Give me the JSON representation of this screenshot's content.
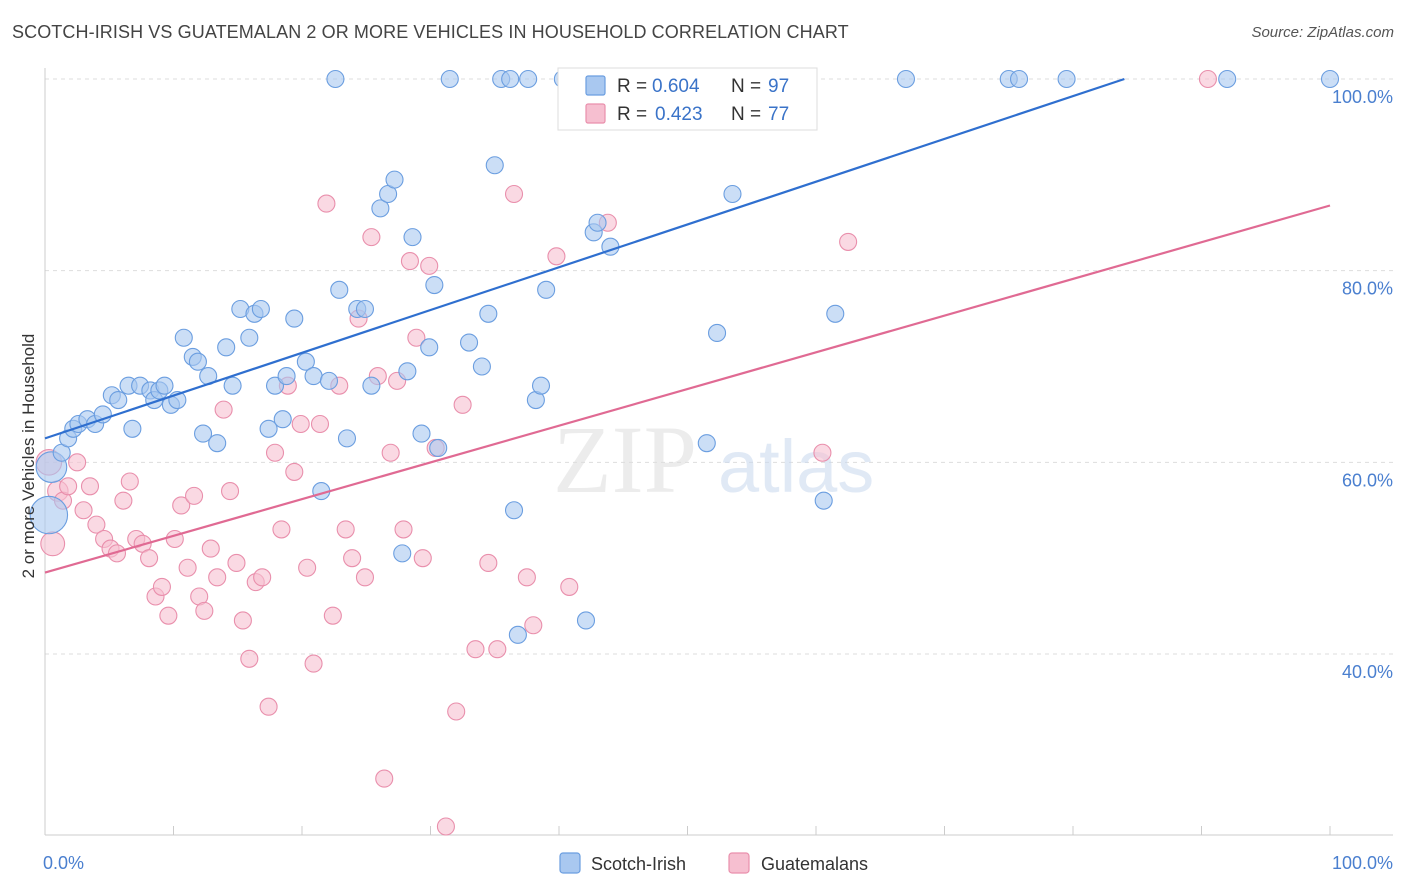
{
  "title": "SCOTCH-IRISH VS GUATEMALAN 2 OR MORE VEHICLES IN HOUSEHOLD CORRELATION CHART",
  "source": "Source: ZipAtlas.com",
  "watermark": {
    "zip": "ZIP",
    "atlas": "atlas"
  },
  "colors": {
    "blue_fill": "#a9c8f0",
    "blue_stroke": "#6b9ee0",
    "blue_line": "#2f6fcf",
    "pink_fill": "#f6bfd0",
    "pink_stroke": "#e98fac",
    "pink_line": "#e06a93",
    "tick_text": "#4a7fcf",
    "grid": "#dddddd"
  },
  "legend": {
    "rows": [
      {
        "r_label": "R =",
        "r_value": "0.604",
        "n_label": "N =",
        "n_value": "97",
        "series": "blue"
      },
      {
        "r_label": "R =",
        "r_value": "0.423",
        "n_label": "N =",
        "n_value": "77",
        "series": "pink"
      }
    ]
  },
  "bottom_legend": [
    {
      "label": "Scotch-Irish",
      "series": "blue"
    },
    {
      "label": "Guatemalans",
      "series": "pink"
    }
  ],
  "chart_data": {
    "type": "scatter",
    "xlabel": "",
    "ylabel": "2 or more Vehicles in Household",
    "xlim": [
      0,
      100
    ],
    "ylim": [
      20,
      101
    ],
    "x_tick_labels": [
      {
        "value": 0,
        "label": "0.0%"
      },
      {
        "value": 100,
        "label": "100.0%"
      }
    ],
    "y_tick_labels": [
      {
        "value": 40,
        "label": "40.0%"
      },
      {
        "value": 60,
        "label": "60.0%"
      },
      {
        "value": 80,
        "label": "80.0%"
      },
      {
        "value": 100,
        "label": "100.0%"
      }
    ],
    "grid": true,
    "series": [
      {
        "name": "Scotch-Irish",
        "color": "blue",
        "trend": {
          "x": [
            0,
            84
          ],
          "y": [
            62.5,
            100
          ]
        },
        "points": [
          [
            0.3,
            54.5,
            2.2
          ],
          [
            0.5,
            59.5,
            1.8
          ],
          [
            1.3,
            61,
            1
          ],
          [
            1.8,
            62.5,
            1
          ],
          [
            2.2,
            63.5,
            1
          ],
          [
            2.6,
            64,
            1
          ],
          [
            3.3,
            64.5,
            1
          ],
          [
            3.9,
            64,
            1
          ],
          [
            4.5,
            65,
            1
          ],
          [
            5.2,
            67,
            1
          ],
          [
            6.5,
            68,
            1
          ],
          [
            5.7,
            66.5,
            1
          ],
          [
            6.8,
            63.5,
            1
          ],
          [
            7.4,
            68,
            1
          ],
          [
            8.2,
            67.5,
            1
          ],
          [
            8.5,
            66.5,
            1
          ],
          [
            8.9,
            67.5,
            1
          ],
          [
            9.3,
            68,
            1
          ],
          [
            9.8,
            66,
            1
          ],
          [
            10.3,
            66.5,
            1
          ],
          [
            10.8,
            73,
            1
          ],
          [
            11.5,
            71,
            1
          ],
          [
            11.9,
            70.5,
            1
          ],
          [
            12.3,
            63,
            1
          ],
          [
            12.7,
            69,
            1
          ],
          [
            13.4,
            62,
            1
          ],
          [
            14.1,
            72,
            1
          ],
          [
            14.6,
            68,
            1
          ],
          [
            15.2,
            76,
            1
          ],
          [
            15.9,
            73,
            1
          ],
          [
            16.3,
            75.5,
            1
          ],
          [
            16.8,
            76,
            1
          ],
          [
            17.4,
            63.5,
            1
          ],
          [
            17.9,
            68,
            1
          ],
          [
            18.5,
            64.5,
            1
          ],
          [
            18.8,
            69,
            1
          ],
          [
            19.4,
            75,
            1
          ],
          [
            20.3,
            70.5,
            1
          ],
          [
            20.9,
            69,
            1
          ],
          [
            21.5,
            57,
            1
          ],
          [
            22.1,
            68.5,
            1
          ],
          [
            22.6,
            100,
            1
          ],
          [
            22.9,
            78,
            1
          ],
          [
            23.5,
            62.5,
            1
          ],
          [
            24.3,
            76,
            1
          ],
          [
            24.9,
            76,
            1
          ],
          [
            25.4,
            68,
            1
          ],
          [
            26.1,
            86.5,
            1
          ],
          [
            26.7,
            88,
            1
          ],
          [
            27.2,
            89.5,
            1
          ],
          [
            27.8,
            50.5,
            1
          ],
          [
            28.2,
            69.5,
            1
          ],
          [
            28.6,
            83.5,
            1
          ],
          [
            29.3,
            63,
            1
          ],
          [
            29.9,
            72,
            1
          ],
          [
            30.3,
            78.5,
            1
          ],
          [
            30.6,
            61.5,
            1
          ],
          [
            31.5,
            100,
            1
          ],
          [
            33.0,
            72.5,
            1
          ],
          [
            34.0,
            70,
            1
          ],
          [
            34.5,
            75.5,
            1
          ],
          [
            35.0,
            91,
            1
          ],
          [
            35.5,
            100,
            1
          ],
          [
            36.2,
            100,
            1
          ],
          [
            36.5,
            55,
            1
          ],
          [
            36.8,
            42,
            1
          ],
          [
            37.6,
            100,
            1
          ],
          [
            38.2,
            66.5,
            1
          ],
          [
            38.6,
            68,
            1
          ],
          [
            39.0,
            78,
            1
          ],
          [
            40.3,
            100,
            1
          ],
          [
            40.9,
            100,
            1
          ],
          [
            42.1,
            43.5,
            1
          ],
          [
            42.7,
            84,
            1
          ],
          [
            43.0,
            85,
            1
          ],
          [
            44.0,
            82.5,
            1
          ],
          [
            51.5,
            62,
            1
          ],
          [
            52.3,
            73.5,
            1
          ],
          [
            53.5,
            88,
            1
          ],
          [
            56.0,
            100,
            1
          ],
          [
            60.6,
            56,
            1
          ],
          [
            61.5,
            75.5,
            1
          ],
          [
            67.0,
            100,
            1
          ],
          [
            75.0,
            100,
            1
          ],
          [
            75.8,
            100,
            1
          ],
          [
            79.5,
            100,
            1
          ],
          [
            92.0,
            100,
            1
          ],
          [
            100.0,
            100,
            1
          ]
        ]
      },
      {
        "name": "Guatemalans",
        "color": "pink",
        "trend": {
          "x": [
            0,
            100
          ],
          "y": [
            48.5,
            86.8
          ]
        },
        "points": [
          [
            0.3,
            60,
            1.5
          ],
          [
            0.6,
            51.5,
            1.4
          ],
          [
            1.0,
            57,
            1.2
          ],
          [
            1.4,
            56,
            1
          ],
          [
            1.8,
            57.5,
            1
          ],
          [
            2.5,
            60,
            1
          ],
          [
            3.0,
            55,
            1
          ],
          [
            3.5,
            57.5,
            1
          ],
          [
            4.0,
            53.5,
            1
          ],
          [
            4.6,
            52,
            1
          ],
          [
            5.1,
            51,
            1
          ],
          [
            5.6,
            50.5,
            1
          ],
          [
            6.1,
            56,
            1
          ],
          [
            6.6,
            58,
            1
          ],
          [
            7.1,
            52,
            1
          ],
          [
            7.6,
            51.5,
            1
          ],
          [
            8.1,
            50,
            1
          ],
          [
            8.6,
            46,
            1
          ],
          [
            9.1,
            47,
            1
          ],
          [
            9.6,
            44,
            1
          ],
          [
            10.1,
            52,
            1
          ],
          [
            10.6,
            55.5,
            1
          ],
          [
            11.1,
            49,
            1
          ],
          [
            11.6,
            56.5,
            1
          ],
          [
            12.0,
            46,
            1
          ],
          [
            12.4,
            44.5,
            1
          ],
          [
            12.9,
            51,
            1
          ],
          [
            13.4,
            48,
            1
          ],
          [
            13.9,
            65.5,
            1
          ],
          [
            14.4,
            57,
            1
          ],
          [
            14.9,
            49.5,
            1
          ],
          [
            15.4,
            43.5,
            1
          ],
          [
            15.9,
            39.5,
            1
          ],
          [
            16.4,
            47.5,
            1
          ],
          [
            16.9,
            48,
            1
          ],
          [
            17.4,
            34.5,
            1
          ],
          [
            17.9,
            61,
            1
          ],
          [
            18.4,
            53,
            1
          ],
          [
            18.9,
            68,
            1
          ],
          [
            19.4,
            59,
            1
          ],
          [
            19.9,
            64,
            1
          ],
          [
            20.4,
            49,
            1
          ],
          [
            20.9,
            39,
            1
          ],
          [
            21.4,
            64,
            1
          ],
          [
            21.9,
            87,
            1
          ],
          [
            22.4,
            44,
            1
          ],
          [
            22.9,
            68,
            1
          ],
          [
            23.4,
            53,
            1
          ],
          [
            23.9,
            50,
            1
          ],
          [
            24.4,
            75,
            1
          ],
          [
            24.9,
            48,
            1
          ],
          [
            25.4,
            83.5,
            1
          ],
          [
            25.9,
            69,
            1
          ],
          [
            26.4,
            27,
            1
          ],
          [
            26.9,
            61,
            1
          ],
          [
            27.4,
            68.5,
            1
          ],
          [
            27.9,
            53,
            1
          ],
          [
            28.4,
            81,
            1
          ],
          [
            28.9,
            73,
            1
          ],
          [
            29.4,
            50,
            1
          ],
          [
            29.9,
            80.5,
            1
          ],
          [
            30.4,
            61.5,
            1
          ],
          [
            31.2,
            22,
            1
          ],
          [
            32.0,
            34,
            1
          ],
          [
            32.5,
            66,
            1
          ],
          [
            33.5,
            40.5,
            1
          ],
          [
            34.5,
            49.5,
            1
          ],
          [
            35.2,
            40.5,
            1
          ],
          [
            36.5,
            88,
            1
          ],
          [
            37.5,
            48,
            1
          ],
          [
            38.0,
            43,
            1
          ],
          [
            39.8,
            81.5,
            1
          ],
          [
            40.8,
            47,
            1
          ],
          [
            41.5,
            100,
            1
          ],
          [
            43.8,
            85,
            1
          ],
          [
            60.5,
            61,
            1
          ],
          [
            62.5,
            83,
            1
          ],
          [
            90.5,
            100,
            1
          ]
        ]
      }
    ]
  }
}
